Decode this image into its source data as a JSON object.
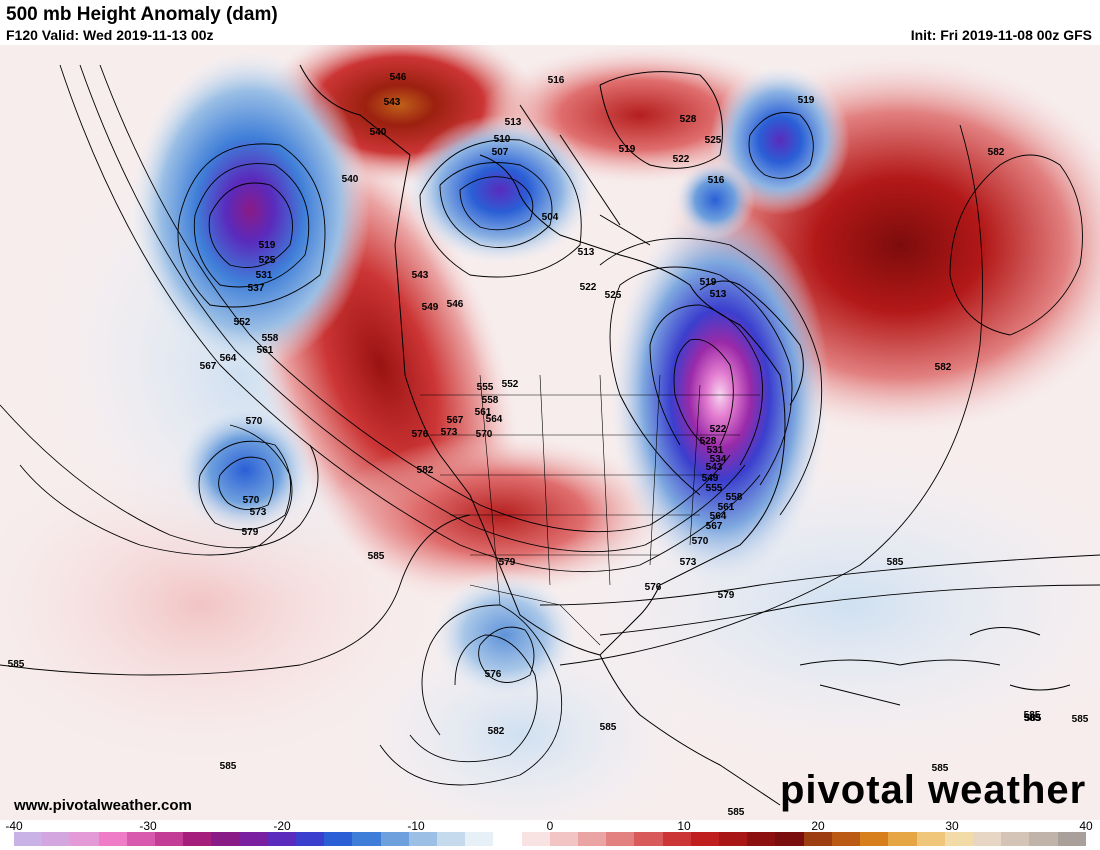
{
  "header": {
    "title": "500 mb Height Anomaly (dam)",
    "valid": "F120 Valid: Wed 2019-11-13 00z",
    "init": "Init: Fri 2019-11-08 00z GFS"
  },
  "footer": {
    "website": "www.pivotalweather.com",
    "logo": "pivotal weather"
  },
  "colorbar": {
    "min": -40,
    "max": 40,
    "ticks": [
      "-40",
      "-30",
      "-20",
      "-10",
      "0",
      "10",
      "20",
      "30",
      "40"
    ],
    "colors": [
      "#c9b3e6",
      "#d4a6e0",
      "#e59ad8",
      "#ee7cc6",
      "#d85aae",
      "#c33c95",
      "#a51e7c",
      "#8a1a86",
      "#7a1fa0",
      "#5a2bbd",
      "#3b3fce",
      "#2a5fd6",
      "#3f7ed8",
      "#6ea0dd",
      "#9bbfe5",
      "#c6daee",
      "#e8f0f7",
      "#ffffff",
      "#f8e2e2",
      "#f2c4c4",
      "#eba4a4",
      "#e38181",
      "#d95a5a",
      "#cc3535",
      "#c01f1f",
      "#a81616",
      "#8c1010",
      "#7a0d0d",
      "#9c3d12",
      "#bb5a14",
      "#d77f1c",
      "#e7a645",
      "#f0c77a",
      "#f3dba8",
      "#e7d6c4",
      "#d3c4b7",
      "#c0b3aa",
      "#a9a09b"
    ]
  },
  "map": {
    "contour_labels": [
      "546",
      "543",
      "540",
      "540",
      "516",
      "513",
      "510",
      "507",
      "504",
      "519",
      "522",
      "528",
      "525",
      "516",
      "519",
      "513",
      "513",
      "522",
      "525",
      "519",
      "519",
      "525",
      "531",
      "537",
      "552",
      "558",
      "561",
      "564",
      "567",
      "570",
      "570",
      "573",
      "579",
      "543",
      "549",
      "546",
      "555",
      "558",
      "561",
      "564",
      "567",
      "570",
      "573",
      "576",
      "552",
      "582",
      "579",
      "585",
      "585",
      "585",
      "585",
      "576",
      "582",
      "585",
      "522",
      "528",
      "531",
      "534",
      "543",
      "549",
      "555",
      "558",
      "561",
      "564",
      "567",
      "570",
      "573",
      "576",
      "579",
      "582",
      "582",
      "585",
      "585",
      "585",
      "585",
      "585",
      "585"
    ]
  }
}
